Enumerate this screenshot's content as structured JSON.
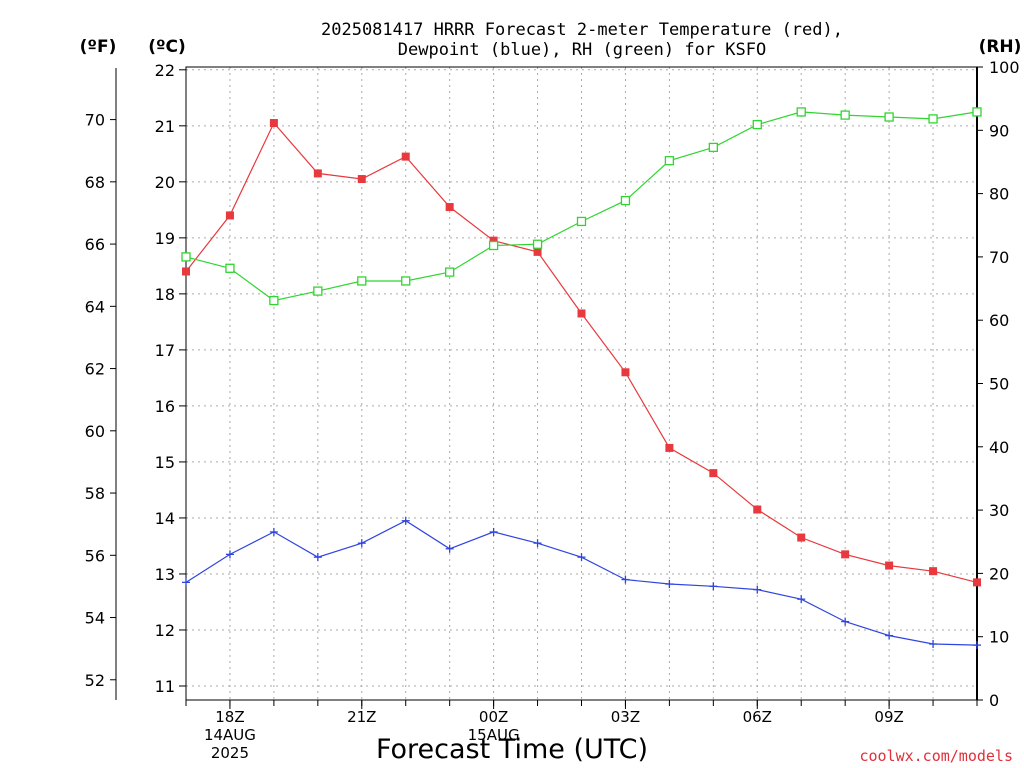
{
  "chart_data": {
    "type": "line",
    "title_lines": [
      "2025081417 HRRR Forecast 2-meter Temperature (red),",
      "Dewpoint (blue), RH (green) for KSFO"
    ],
    "xlabel": "Forecast Time (UTC)",
    "credit": "coolwx.com/models",
    "unit_labels": {
      "fahrenheit": "(ºF)",
      "celsius": "(ºC)",
      "rh": "(RH)"
    },
    "x_hours": [
      17,
      18,
      19,
      20,
      21,
      22,
      23,
      24,
      25,
      26,
      27,
      28,
      29,
      30,
      31,
      32,
      33,
      34,
      35
    ],
    "x_range": [
      17,
      35
    ],
    "x_ticks": [
      {
        "hour": 18,
        "lines": [
          "18Z",
          "14AUG",
          "2025"
        ]
      },
      {
        "hour": 21,
        "lines": [
          "21Z"
        ]
      },
      {
        "hour": 24,
        "lines": [
          "00Z",
          "15AUG"
        ]
      },
      {
        "hour": 27,
        "lines": [
          "03Z"
        ]
      },
      {
        "hour": 30,
        "lines": [
          "06Z"
        ]
      },
      {
        "hour": 33,
        "lines": [
          "09Z"
        ]
      }
    ],
    "celsius_axis": {
      "range": [
        10.75,
        22.05
      ],
      "ticks": [
        11,
        12,
        13,
        14,
        15,
        16,
        17,
        18,
        19,
        20,
        21,
        22
      ]
    },
    "fahrenheit_axis": {
      "ticks": [
        52,
        54,
        56,
        58,
        60,
        62,
        64,
        66,
        68,
        70
      ]
    },
    "rh_axis": {
      "range": [
        0,
        100
      ],
      "ticks": [
        0,
        10,
        20,
        30,
        40,
        50,
        60,
        70,
        80,
        90,
        100
      ]
    },
    "series": [
      {
        "key": "temperature",
        "axis": "celsius",
        "color": "#e8393e",
        "marker": "filled-square",
        "values": [
          18.4,
          19.4,
          21.05,
          20.15,
          20.05,
          20.45,
          19.55,
          18.95,
          18.75,
          17.65,
          16.6,
          15.25,
          14.8,
          14.15,
          13.65,
          13.35,
          13.15,
          13.05,
          12.85
        ]
      },
      {
        "key": "dewpoint",
        "axis": "celsius",
        "color": "#2f45e0",
        "marker": "plus",
        "values": [
          12.85,
          13.35,
          13.75,
          13.3,
          13.55,
          13.95,
          13.45,
          13.75,
          13.55,
          13.3,
          12.9,
          12.82,
          12.78,
          12.72,
          12.55,
          12.15,
          11.9,
          11.75,
          11.73
        ]
      },
      {
        "key": "rh",
        "axis": "rh",
        "color": "#2fd62f",
        "marker": "open-square",
        "values": [
          70,
          68.2,
          63.1,
          64.6,
          66.2,
          66.2,
          67.6,
          71.8,
          72,
          75.6,
          78.9,
          85.2,
          87.3,
          90.9,
          92.9,
          92.4,
          92.1,
          91.8,
          92.9
        ]
      }
    ]
  }
}
